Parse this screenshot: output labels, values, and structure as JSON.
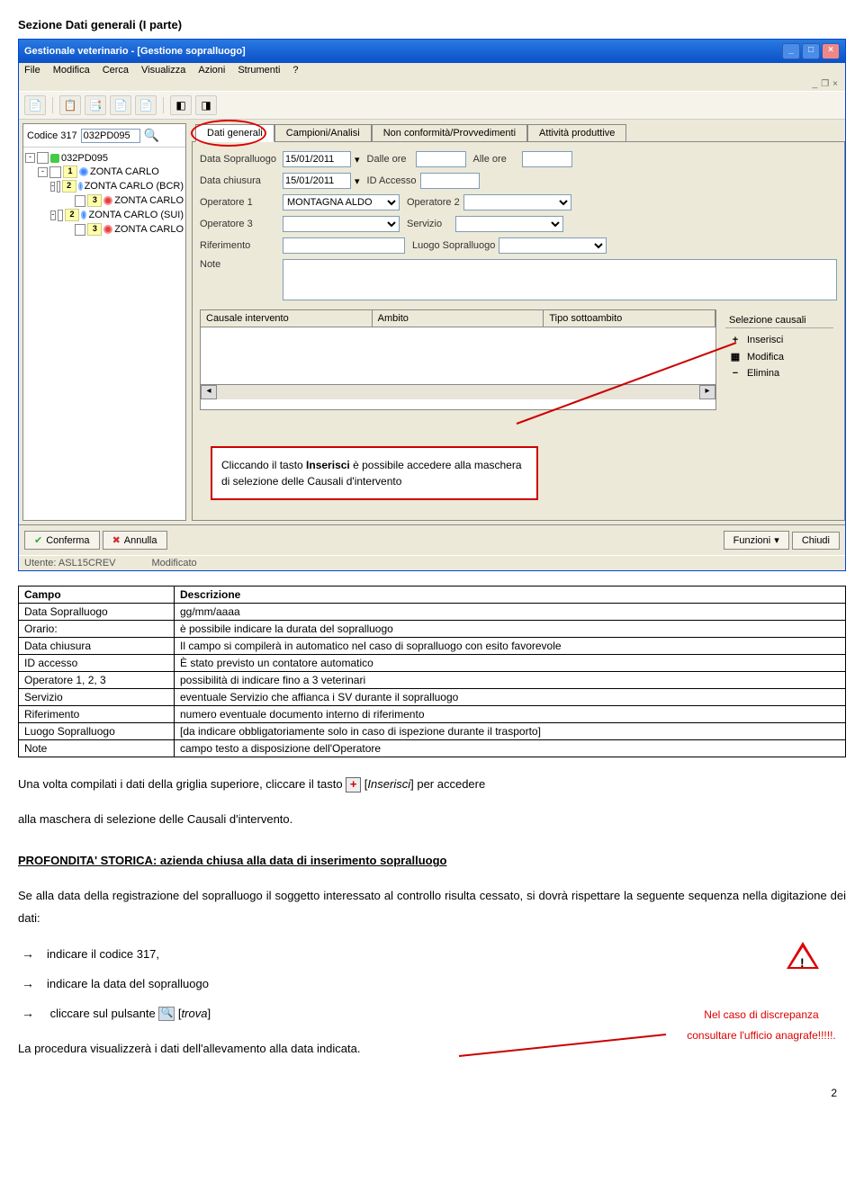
{
  "section_title_prefix": "Sezione ",
  "section_title_bold": "Dati generali (I parte)",
  "window": {
    "title": "Gestionale veterinario - [Gestione sopralluogo]",
    "menus": [
      "File",
      "Modifica",
      "Cerca",
      "Visualizza",
      "Azioni",
      "Strumenti",
      "?"
    ],
    "code_label": "Codice 317",
    "code_value": "032PD095",
    "tree": [
      {
        "level": 0,
        "exp": "-",
        "badge": "",
        "dot": "green",
        "text": "032PD095"
      },
      {
        "level": 1,
        "exp": "-",
        "badge": "1",
        "dot": "blue",
        "text": "ZONTA CARLO"
      },
      {
        "level": 2,
        "exp": "-",
        "badge": "2",
        "dot": "blue",
        "text": "ZONTA CARLO (BCR)"
      },
      {
        "level": 3,
        "exp": "",
        "badge": "3",
        "dot": "red",
        "text": "ZONTA CARLO"
      },
      {
        "level": 2,
        "exp": "-",
        "badge": "2",
        "dot": "blue",
        "text": "ZONTA CARLO (SUI)"
      },
      {
        "level": 3,
        "exp": "",
        "badge": "3",
        "dot": "red",
        "text": "ZONTA CARLO"
      }
    ],
    "tabs": [
      "Dati generali",
      "Campioni/Analisi",
      "Non conformità/Provvedimenti",
      "Attività produttive"
    ],
    "form": {
      "data_sopralluogo_label": "Data Sopralluogo",
      "data_sopralluogo": "15/01/2011",
      "dalle_ore_label": "Dalle ore",
      "alle_ore_label": "Alle ore",
      "data_chiusura_label": "Data chiusura",
      "data_chiusura": "15/01/2011",
      "id_accesso_label": "ID Accesso",
      "operatore1_label": "Operatore 1",
      "operatore1": "MONTAGNA ALDO",
      "operatore2_label": "Operatore 2",
      "operatore3_label": "Operatore 3",
      "servizio_label": "Servizio",
      "riferimento_label": "Riferimento",
      "luogo_label": "Luogo Sopralluogo",
      "note_label": "Note"
    },
    "grid_headers": [
      "Causale intervento",
      "Ambito",
      "Tipo sottoambito"
    ],
    "side": {
      "title": "Selezione causali",
      "inserisci": "Inserisci",
      "modifica": "Modifica",
      "elimina": "Elimina"
    },
    "bottom": {
      "conferma": "Conferma",
      "annulla": "Annulla",
      "funzioni": "Funzioni",
      "chiudi": "Chiudi"
    },
    "status": {
      "utente_label": "Utente:",
      "utente": "ASL15CREV",
      "modificato": "Modificato"
    }
  },
  "callout_text_1": "Cliccando il tasto ",
  "callout_bold": "Inserisci",
  "callout_text_2": " è possibile accedere alla maschera di selezione delle Causali d'intervento",
  "table": {
    "h1": "Campo",
    "h2": "Descrizione",
    "rows": [
      [
        "Data Sopralluogo",
        "gg/mm/aaaa"
      ],
      [
        "Orario:",
        "è possibile indicare la durata del sopralluogo"
      ],
      [
        "Data chiusura",
        "Il campo si compilerà in automatico nel caso di sopralluogo con esito favorevole"
      ],
      [
        "ID accesso",
        "È stato previsto un contatore automatico"
      ],
      [
        "Operatore 1, 2, 3",
        "possibilità di indicare fino a 3 veterinari"
      ],
      [
        "Servizio",
        "eventuale Servizio che affianca i SV durante il sopralluogo"
      ],
      [
        "Riferimento",
        "numero eventuale documento interno di riferimento"
      ],
      [
        "Luogo Sopralluogo",
        "[da indicare obbligatoriamente solo in caso di ispezione durante il trasporto]"
      ],
      [
        "Note",
        "campo testo a disposizione dell'Operatore"
      ]
    ]
  },
  "para1_a": "Una volta compilati i dati della griglia superiore, cliccare il tasto ",
  "para1_b": " [",
  "para1_c": "Inserisci",
  "para1_d": "] per accedere",
  "para1_e": "alla maschera di selezione delle Causali d'intervento.",
  "profond_title": "PROFONDITA' STORICA: azienda chiusa alla data di inserimento sopralluogo",
  "profond_text": "Se alla data della registrazione del sopralluogo il soggetto interessato al controllo risulta cessato, si dovrà rispettare la seguente sequenza nella digitazione dei dati:",
  "steps": {
    "s1": "indicare il codice 317,",
    "s2": "indicare la data del sopralluogo",
    "s3a": "cliccare sul pulsante ",
    "s3b": " [",
    "s3c": "trova",
    "s3d": "]"
  },
  "warn_text": "Nel caso di discrepanza consultare l'ufficio anagrafe!!!!!.",
  "final_text": "La procedura visualizzerà i dati dell'allevamento alla data indicata.",
  "page_num": "2"
}
